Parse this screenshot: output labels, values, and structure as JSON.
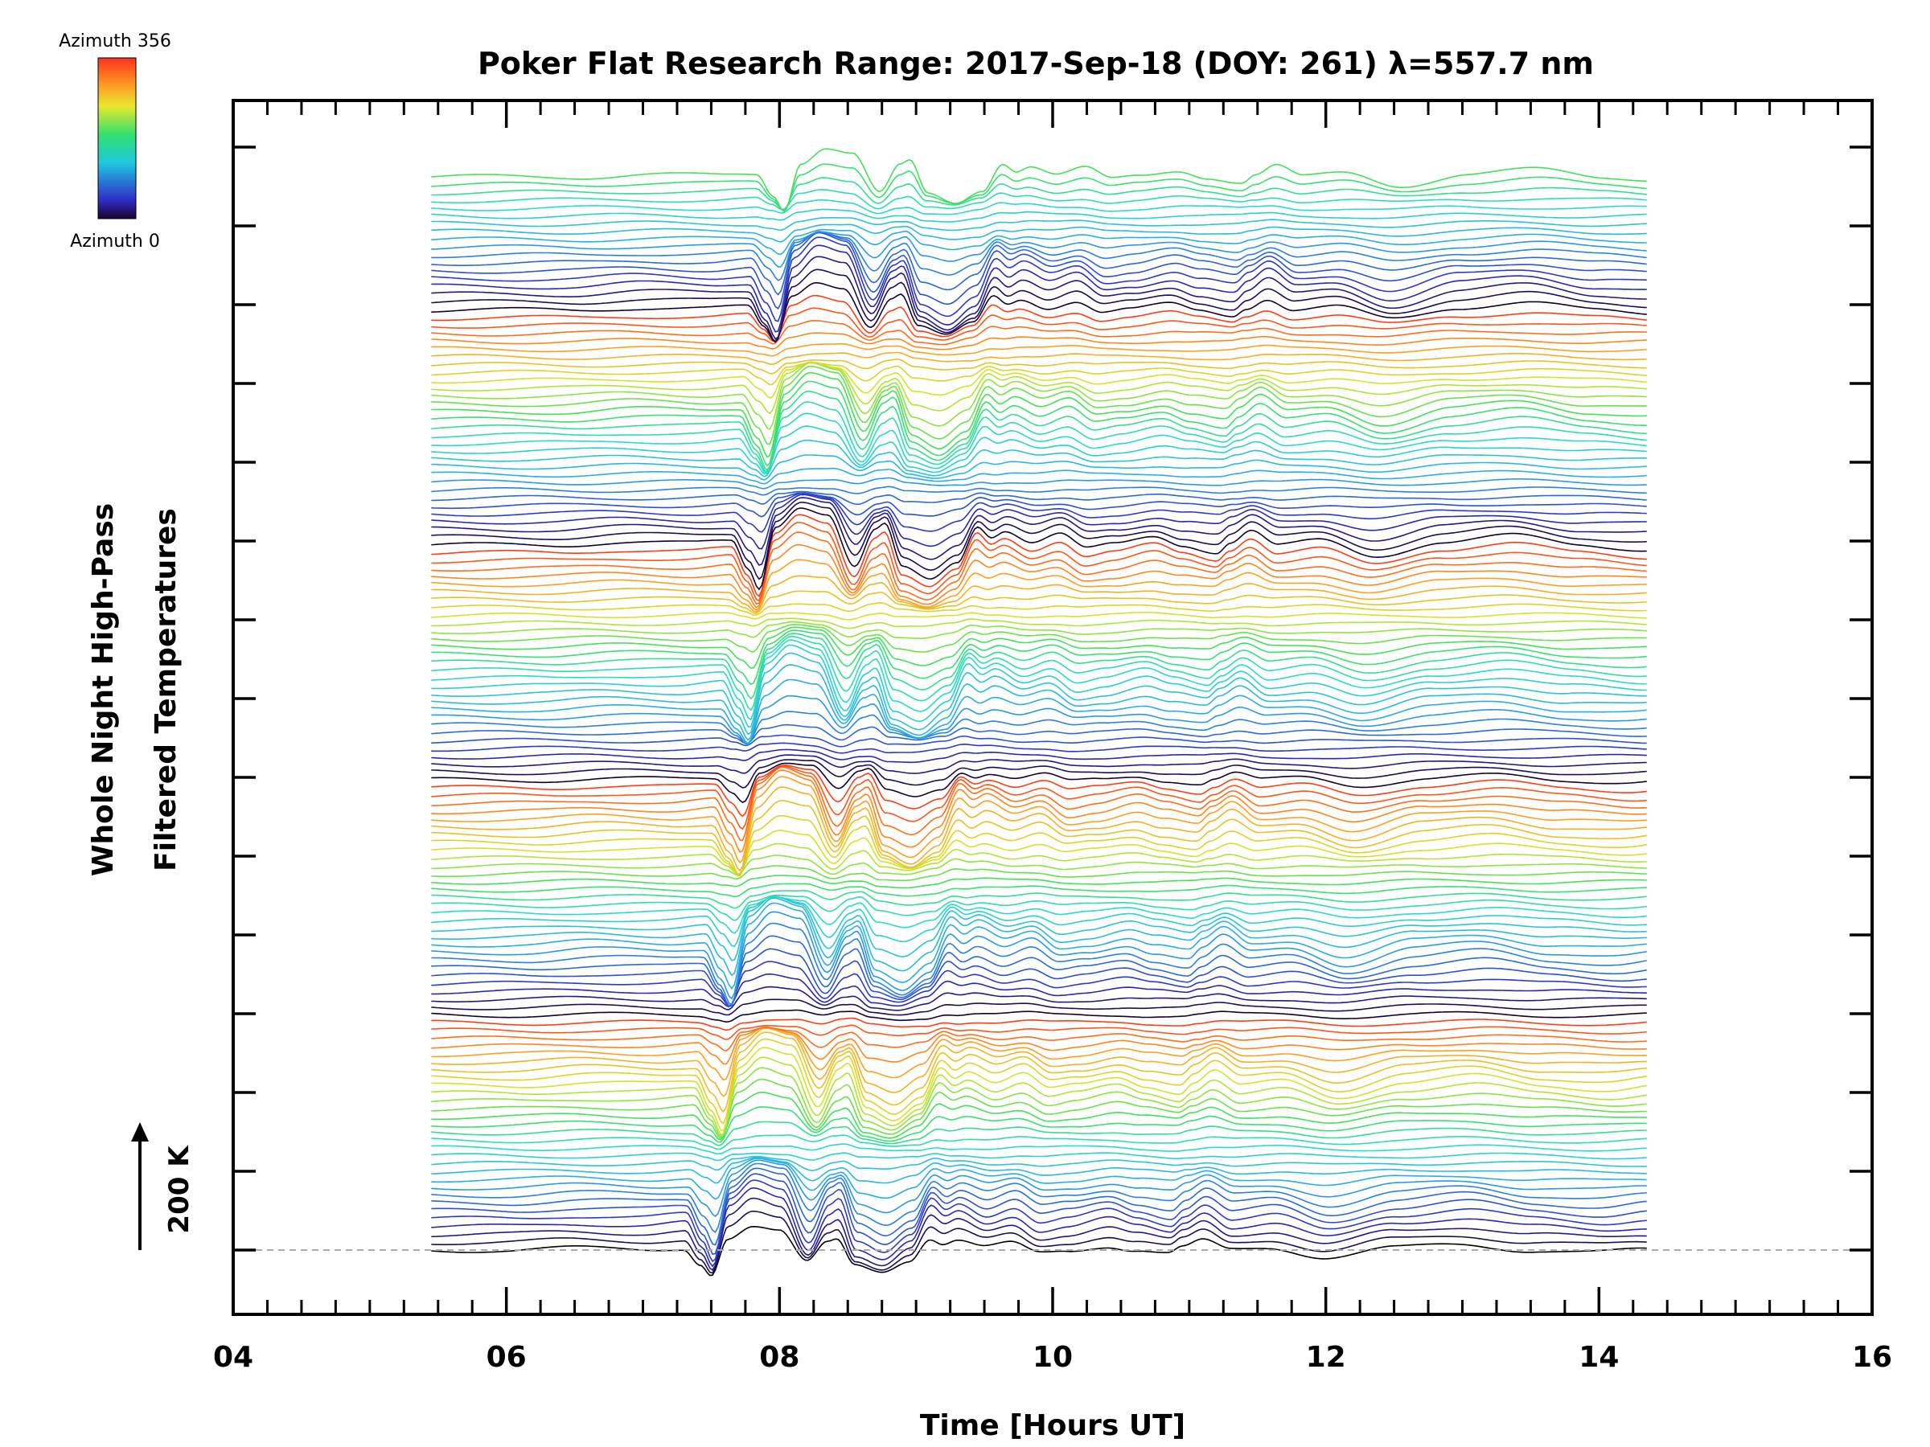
{
  "chart_data": {
    "type": "line",
    "title": "Poker Flat Research Range: 2017-Sep-18 (DOY: 261) λ=557.7 nm",
    "xlabel": "Time [Hours UT]",
    "ylabel_line1": "Whole Night High-Pass",
    "ylabel_line2": "Filtered Temperatures",
    "xlim": [
      4,
      16
    ],
    "x_ticks": [
      "04",
      "06",
      "08",
      "10",
      "12",
      "14",
      "16"
    ],
    "x_start": 5.45,
    "x_end": 14.35,
    "scale_bar_label": "200 K",
    "colorbar": {
      "top_label": "Azimuth 356",
      "bottom_label": "Azimuth 0"
    },
    "series_count": 138,
    "grid": false,
    "baseline_dashed": true,
    "profile_keypoints": [
      [
        5.45,
        0
      ],
      [
        6.0,
        0
      ],
      [
        6.5,
        4
      ],
      [
        7.0,
        2
      ],
      [
        7.3,
        5
      ],
      [
        7.42,
        -30
      ],
      [
        7.5,
        -55
      ],
      [
        7.62,
        25
      ],
      [
        7.8,
        50
      ],
      [
        8.0,
        40
      ],
      [
        8.2,
        -28
      ],
      [
        8.35,
        18
      ],
      [
        8.42,
        25
      ],
      [
        8.55,
        -30
      ],
      [
        8.75,
        -45
      ],
      [
        8.95,
        -22
      ],
      [
        9.1,
        25
      ],
      [
        9.2,
        12
      ],
      [
        9.3,
        20
      ],
      [
        9.5,
        5
      ],
      [
        9.7,
        15
      ],
      [
        9.9,
        -5
      ],
      [
        10.1,
        0
      ],
      [
        10.4,
        10
      ],
      [
        10.6,
        0
      ],
      [
        10.85,
        -8
      ],
      [
        10.95,
        5
      ],
      [
        11.1,
        20
      ],
      [
        11.3,
        0
      ],
      [
        11.6,
        5
      ],
      [
        12.0,
        -15
      ],
      [
        12.5,
        5
      ],
      [
        13.0,
        12
      ],
      [
        13.5,
        0
      ],
      [
        14.0,
        -5
      ],
      [
        14.35,
        0
      ]
    ]
  }
}
